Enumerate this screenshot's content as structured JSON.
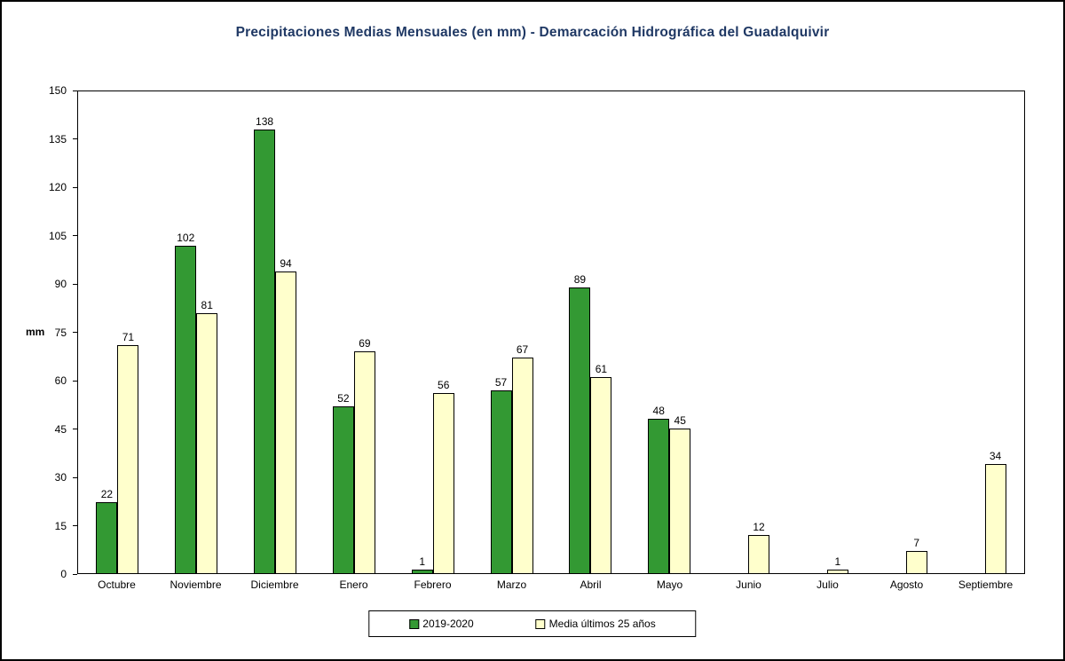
{
  "chart_data": {
    "type": "bar",
    "title": "Precipitaciones Medias Mensuales (en mm) - Demarcación Hidrográfica del Guadalquivir",
    "categories": [
      "Octubre",
      "Noviembre",
      "Diciembre",
      "Enero",
      "Febrero",
      "Marzo",
      "Abril",
      "Mayo",
      "Junio",
      "Julio",
      "Agosto",
      "Septiembre"
    ],
    "series": [
      {
        "name": "2019-2020",
        "color": "#339933",
        "values": [
          22,
          102,
          138,
          52,
          1,
          57,
          89,
          48,
          0,
          0,
          0,
          0
        ]
      },
      {
        "name": "Media últimos 25 años",
        "color": "#FFFFCC",
        "values": [
          71,
          81,
          94,
          69,
          56,
          67,
          61,
          45,
          12,
          1,
          7,
          34
        ]
      }
    ],
    "xlabel": "",
    "ylabel": "mm",
    "ylim": [
      0,
      150
    ],
    "ytick_step": 15,
    "grid": false,
    "legend_position": "bottom",
    "show_value_labels": true,
    "bar_border_color": "#000000",
    "title_color": "#1F3864"
  }
}
